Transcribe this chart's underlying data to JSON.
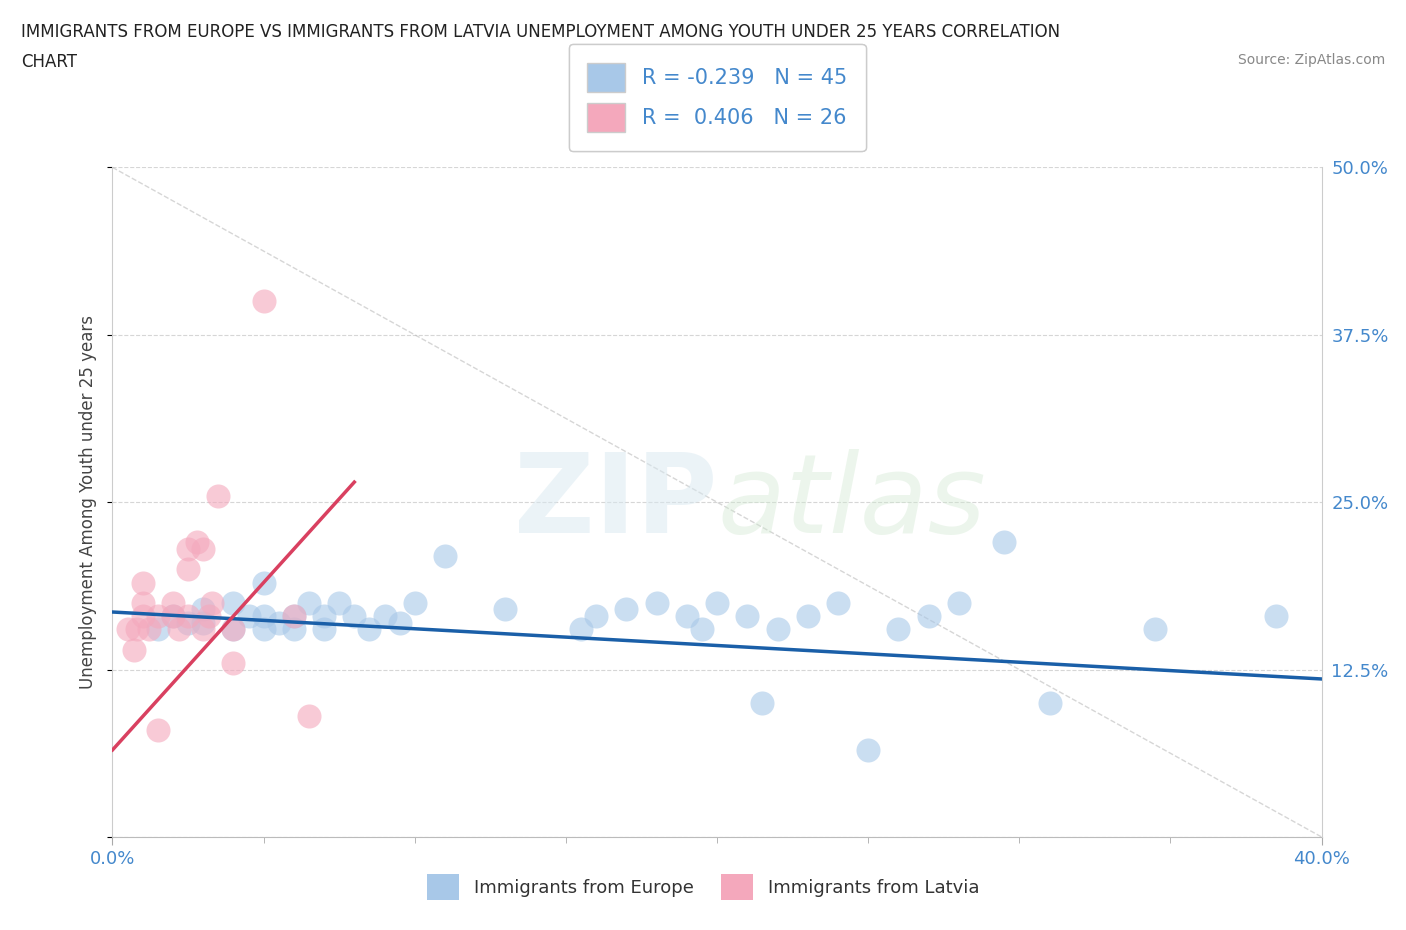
{
  "title_line1": "IMMIGRANTS FROM EUROPE VS IMMIGRANTS FROM LATVIA UNEMPLOYMENT AMONG YOUTH UNDER 25 YEARS CORRELATION",
  "title_line2": "CHART",
  "source_text": "Source: ZipAtlas.com",
  "ylabel": "Unemployment Among Youth under 25 years",
  "xlim": [
    0.0,
    0.4
  ],
  "ylim": [
    0.0,
    0.5
  ],
  "xticks": [
    0.0,
    0.4
  ],
  "xticklabels": [
    "0.0%",
    "40.0%"
  ],
  "yticks_right": [
    0.125,
    0.25,
    0.375,
    0.5
  ],
  "yticklabels_right": [
    "12.5%",
    "25.0%",
    "37.5%",
    "50.0%"
  ],
  "blue_color": "#a8c8e8",
  "pink_color": "#f4a8bc",
  "blue_line_color": "#1a5fa8",
  "pink_line_color": "#d94060",
  "R_blue": -0.239,
  "N_blue": 45,
  "R_pink": 0.406,
  "N_pink": 26,
  "watermark_zip": "ZIP",
  "watermark_atlas": "atlas",
  "legend_label_blue": "Immigrants from Europe",
  "legend_label_pink": "Immigrants from Latvia",
  "blue_scatter_x": [
    0.015,
    0.02,
    0.025,
    0.03,
    0.03,
    0.04,
    0.04,
    0.045,
    0.05,
    0.05,
    0.05,
    0.055,
    0.06,
    0.06,
    0.065,
    0.07,
    0.07,
    0.075,
    0.08,
    0.085,
    0.09,
    0.095,
    0.1,
    0.11,
    0.13,
    0.155,
    0.16,
    0.17,
    0.18,
    0.19,
    0.195,
    0.2,
    0.21,
    0.215,
    0.22,
    0.23,
    0.24,
    0.25,
    0.26,
    0.27,
    0.28,
    0.295,
    0.31,
    0.345,
    0.385
  ],
  "blue_scatter_y": [
    0.155,
    0.165,
    0.16,
    0.16,
    0.17,
    0.155,
    0.175,
    0.165,
    0.155,
    0.165,
    0.19,
    0.16,
    0.155,
    0.165,
    0.175,
    0.155,
    0.165,
    0.175,
    0.165,
    0.155,
    0.165,
    0.16,
    0.175,
    0.21,
    0.17,
    0.155,
    0.165,
    0.17,
    0.175,
    0.165,
    0.155,
    0.175,
    0.165,
    0.1,
    0.155,
    0.165,
    0.175,
    0.065,
    0.155,
    0.165,
    0.175,
    0.22,
    0.1,
    0.155,
    0.165
  ],
  "pink_scatter_x": [
    0.005,
    0.007,
    0.008,
    0.01,
    0.01,
    0.01,
    0.012,
    0.015,
    0.015,
    0.02,
    0.02,
    0.022,
    0.025,
    0.025,
    0.025,
    0.028,
    0.03,
    0.03,
    0.032,
    0.033,
    0.035,
    0.04,
    0.04,
    0.05,
    0.06,
    0.065
  ],
  "pink_scatter_y": [
    0.155,
    0.14,
    0.155,
    0.165,
    0.175,
    0.19,
    0.155,
    0.165,
    0.08,
    0.165,
    0.175,
    0.155,
    0.2,
    0.215,
    0.165,
    0.22,
    0.155,
    0.215,
    0.165,
    0.175,
    0.255,
    0.13,
    0.155,
    0.4,
    0.165,
    0.09
  ],
  "background_color": "#ffffff",
  "grid_color": "#cccccc",
  "tick_color": "#4488cc",
  "title_fontsize": 12,
  "label_fontsize": 13,
  "tick_fontsize": 13
}
